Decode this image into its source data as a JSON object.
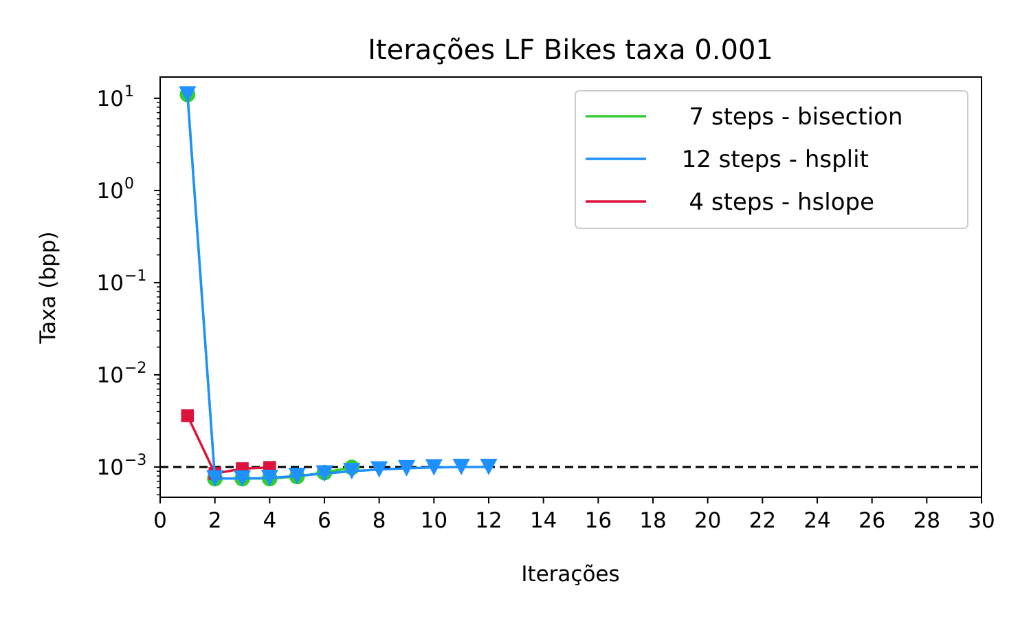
{
  "chart_data": {
    "type": "line",
    "title": "Iterações LF Bikes taxa 0.001",
    "xlabel": "Iterações",
    "ylabel": "Taxa (bpp)",
    "xlim": [
      0,
      30
    ],
    "ylim": [
      0.00047,
      17
    ],
    "yscale": "log",
    "xticks": [
      0,
      2,
      4,
      6,
      8,
      10,
      12,
      14,
      16,
      18,
      20,
      22,
      24,
      26,
      28,
      30
    ],
    "yticks": [
      {
        "value": 10,
        "base": "10",
        "exp": "1"
      },
      {
        "value": 1,
        "base": "10",
        "exp": "0"
      },
      {
        "value": 0.1,
        "base": "10",
        "exp": "−1"
      },
      {
        "value": 0.01,
        "base": "10",
        "exp": "−2"
      },
      {
        "value": 0.001,
        "base": "10",
        "exp": "−3"
      }
    ],
    "reference_line": {
      "y": 0.001,
      "style": "dashed",
      "color": "#000000"
    },
    "legend_position": "top-right",
    "grid": false,
    "series": [
      {
        "name": "   7 steps - bisection",
        "color": "#32cd32",
        "marker": "circle",
        "x": [
          1,
          2,
          3,
          4,
          5,
          6,
          7
        ],
        "y": [
          11.0,
          0.00075,
          0.00075,
          0.00075,
          0.00079,
          0.00087,
          0.00099
        ]
      },
      {
        "name": "  12 steps - hsplit",
        "color": "#1e90ff",
        "marker": "triangle-down",
        "x": [
          1,
          2,
          3,
          4,
          5,
          6,
          7,
          8,
          9,
          10,
          11,
          12
        ],
        "y": [
          11.0,
          0.00075,
          0.00075,
          0.00076,
          0.0008,
          0.00085,
          0.0009,
          0.00094,
          0.00097,
          0.00099,
          0.001,
          0.001
        ]
      },
      {
        "name": "   4 steps - hslope",
        "color": "#dc143c",
        "marker": "square",
        "x": [
          1,
          2,
          3,
          4
        ],
        "y": [
          0.0036,
          0.00085,
          0.00096,
          0.00099
        ]
      }
    ]
  }
}
